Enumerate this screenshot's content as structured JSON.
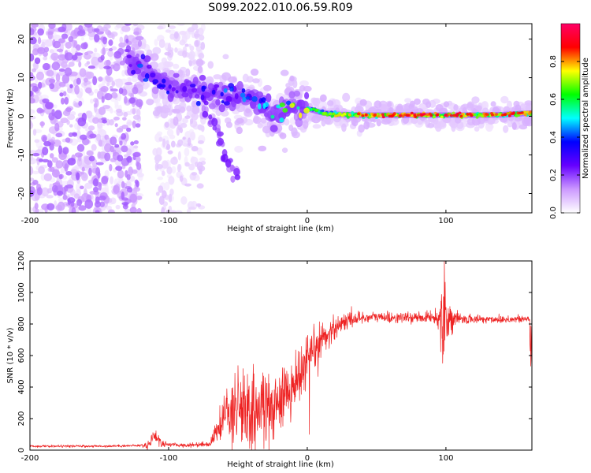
{
  "title": "S099.2022.010.06.59.R09",
  "chart_data": [
    {
      "type": "heatmap",
      "xlabel": "Height of straight line (km)",
      "ylabel": "Frequency (Hz)",
      "xlim": [
        -200,
        162
      ],
      "ylim": [
        -25,
        24
      ],
      "x_ticks": [
        "-200",
        "-100",
        "0",
        "100"
      ],
      "x_tick_values": [
        -200,
        -100,
        0,
        100
      ],
      "y_ticks": [
        "20",
        "10",
        "0",
        "-10",
        "-20"
      ],
      "y_tick_values": [
        20,
        10,
        0,
        -10,
        -20
      ],
      "colorbar": {
        "label": "Normalized spectral amplitude",
        "range": [
          0,
          1
        ],
        "ticks": [
          "0.0",
          "0.2",
          "0.4",
          "0.6",
          "0.8"
        ],
        "tick_values": [
          0,
          0.2,
          0.4,
          0.6,
          0.8
        ],
        "colors": [
          "#ffffff",
          "#cc99ff",
          "#6600ff",
          "#0000ff",
          "#00ffff",
          "#00ff00",
          "#ffff00",
          "#ff0000",
          "#ff0066"
        ]
      },
      "ridge": {
        "x": [
          -130,
          -120,
          -110,
          -100,
          -90,
          -80,
          -70,
          -60,
          -50,
          -40,
          -30,
          -25,
          -20,
          -10,
          0,
          10,
          20,
          40,
          60,
          80,
          100,
          120,
          140,
          160
        ],
        "y": [
          16,
          12,
          10,
          8,
          7,
          7,
          6,
          5,
          5,
          5,
          2,
          0,
          1,
          3,
          2,
          1,
          0.5,
          0.3,
          0.3,
          0.3,
          0.3,
          0.3,
          0.4,
          0.8
        ],
        "amplitude": [
          0.2,
          0.35,
          0.3,
          0.3,
          0.25,
          0.3,
          0.3,
          0.35,
          0.35,
          0.4,
          0.4,
          0.45,
          0.5,
          0.6,
          0.6,
          0.65,
          0.75,
          0.85,
          0.9,
          0.9,
          0.92,
          0.9,
          0.88,
          0.85
        ]
      },
      "branch": {
        "x": [
          -75,
          -70,
          -65,
          -60,
          -55,
          -50
        ],
        "y": [
          3,
          -1,
          -4,
          -10,
          -12,
          -15
        ]
      },
      "noise_region_x": [
        -200,
        -120
      ],
      "noise_band_x": [
        -110,
        -75
      ]
    },
    {
      "type": "line",
      "xlabel": "Height of straight line (km)",
      "ylabel": "SNR (10 * v/v)",
      "xlim": [
        -200,
        162
      ],
      "ylim": [
        0,
        1200
      ],
      "x_ticks": [
        "-200",
        "-100",
        "0",
        "100"
      ],
      "x_tick_values": [
        -200,
        -100,
        0,
        100
      ],
      "y_ticks": [
        "0",
        "200",
        "400",
        "600",
        "800",
        "1000",
        "1200"
      ],
      "y_tick_values": [
        0,
        200,
        400,
        600,
        800,
        1000,
        1200
      ],
      "line_color": "#ee2222",
      "envelope": {
        "x": [
          -200,
          -150,
          -115,
          -110,
          -105,
          -90,
          -70,
          -65,
          -60,
          -55,
          -50,
          -40,
          -30,
          -20,
          -10,
          -5,
          0,
          5,
          10,
          20,
          30,
          40,
          50,
          60,
          80,
          90,
          95,
          98,
          100,
          105,
          110,
          130,
          150,
          162
        ],
        "y": [
          25,
          25,
          30,
          100,
          40,
          30,
          40,
          130,
          200,
          250,
          260,
          240,
          260,
          300,
          380,
          500,
          560,
          620,
          700,
          780,
          830,
          840,
          845,
          840,
          840,
          845,
          830,
          900,
          850,
          830,
          830,
          830,
          830,
          830
        ]
      },
      "noise_amplitude": {
        "x": [
          -200,
          -120,
          -110,
          -100,
          -70,
          -60,
          -50,
          -40,
          -30,
          -20,
          -10,
          0,
          20,
          40,
          90,
          95,
          98,
          102,
          110,
          162
        ],
        "y": [
          6,
          6,
          40,
          8,
          15,
          120,
          220,
          200,
          190,
          160,
          150,
          140,
          60,
          30,
          25,
          60,
          320,
          80,
          25,
          20
        ]
      }
    }
  ]
}
